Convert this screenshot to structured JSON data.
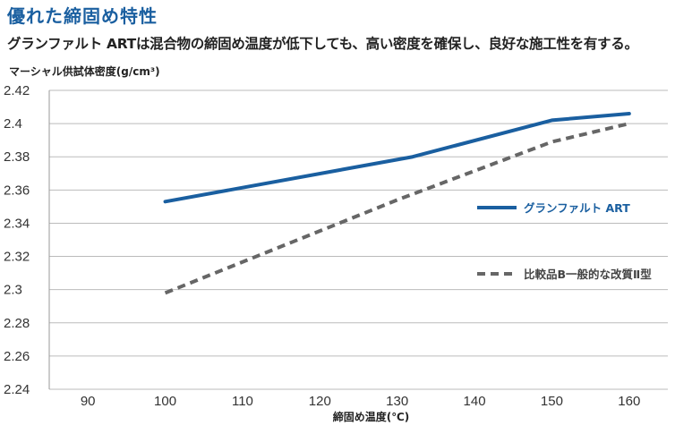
{
  "header": {
    "title": "優れた締固め特性",
    "subtitle": "グランファルト ARTは混合物の締固め温度が低下しても、高い密度を確保し、良好な施工性を有する。"
  },
  "colors": {
    "series_1": "#1a5fa0",
    "series_2": "#666666",
    "grid": "#bbbbbb",
    "title": "#1a5fa0"
  },
  "chart_data": {
    "type": "line",
    "xlabel": "締固め温度(℃)",
    "ylabel": "マーシャル供試体密度(g/cm³)",
    "xlim": [
      85,
      165
    ],
    "ylim": [
      2.24,
      2.42
    ],
    "xticks": [
      "90",
      "100",
      "110",
      "120",
      "130",
      "140",
      "150",
      "160"
    ],
    "xtick_values": [
      90,
      100,
      110,
      120,
      130,
      140,
      150,
      160
    ],
    "yticks": [
      "2.42",
      "2.4",
      "2.38",
      "2.36",
      "2.34",
      "2.32",
      "2.3",
      "2.28",
      "2.26",
      "2.24"
    ],
    "ytick_values": [
      2.42,
      2.4,
      2.38,
      2.36,
      2.34,
      2.32,
      2.3,
      2.28,
      2.26,
      2.24
    ],
    "grid": "horizontal",
    "legend_position": "right",
    "series": [
      {
        "name": "グランファルト ART",
        "style": "solid",
        "x": [
          100,
          132,
          150,
          160
        ],
        "y": [
          2.353,
          2.38,
          2.402,
          2.406
        ]
      },
      {
        "name": "比較品B一般的な改質Ⅱ型",
        "style": "dashed",
        "x": [
          100,
          130,
          150,
          160
        ],
        "y": [
          2.298,
          2.354,
          2.389,
          2.4
        ]
      }
    ]
  }
}
